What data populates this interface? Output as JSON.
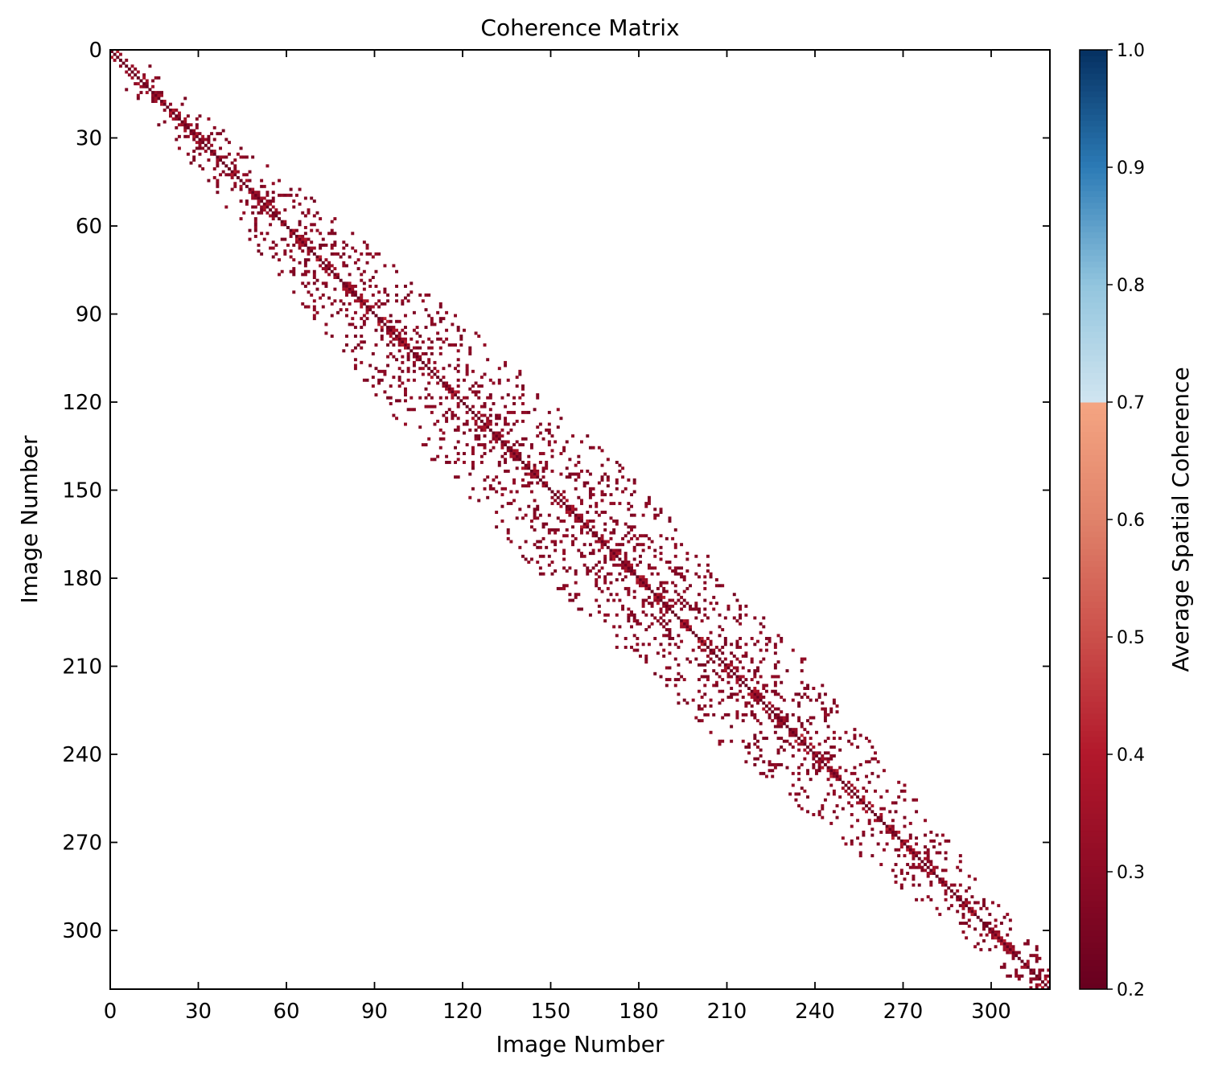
{
  "chart_data": {
    "type": "heatmap",
    "title": "Coherence Matrix",
    "xlabel": "Image Number",
    "ylabel": "Image Number",
    "matrix_size": 320,
    "xlim": [
      0,
      320
    ],
    "ylim": [
      320,
      0
    ],
    "x_ticks": [
      0,
      30,
      60,
      90,
      120,
      150,
      180,
      210,
      240,
      270,
      300
    ],
    "y_ticks": [
      0,
      30,
      60,
      90,
      120,
      150,
      180,
      210,
      240,
      270,
      300
    ],
    "x_tick_labels": [
      "0",
      "30",
      "60",
      "90",
      "120",
      "150",
      "180",
      "210",
      "240",
      "270",
      "300"
    ],
    "y_tick_labels": [
      "0",
      "30",
      "60",
      "90",
      "120",
      "150",
      "180",
      "210",
      "240",
      "270",
      "300"
    ],
    "grid": false,
    "diagonal_value": 0.2,
    "typical_offdiagonal_value": 0.28,
    "band_half_width_by_image": [
      {
        "image": 0,
        "half_width": 8
      },
      {
        "image": 30,
        "half_width": 12
      },
      {
        "image": 60,
        "half_width": 20
      },
      {
        "image": 90,
        "half_width": 28
      },
      {
        "image": 120,
        "half_width": 30
      },
      {
        "image": 150,
        "half_width": 32
      },
      {
        "image": 180,
        "half_width": 30
      },
      {
        "image": 210,
        "half_width": 28
      },
      {
        "image": 240,
        "half_width": 22
      },
      {
        "image": 270,
        "half_width": 15
      },
      {
        "image": 300,
        "half_width": 10
      },
      {
        "image": 320,
        "half_width": 8
      }
    ],
    "colorbar": {
      "label": "Average Spatial Coherence",
      "range": [
        0.2,
        1.0
      ],
      "ticks": [
        0.2,
        0.3,
        0.4,
        0.5,
        0.6,
        0.7,
        0.8,
        0.9,
        1.0
      ],
      "tick_labels": [
        "0.2",
        "0.3",
        "0.4",
        "0.5",
        "0.6",
        "0.7",
        "0.8",
        "0.9",
        "1.0"
      ],
      "colormap": "RdBu",
      "colormap_stops": [
        {
          "value": 0.2,
          "color": "#67001f"
        },
        {
          "value": 0.3,
          "color": "#8e0b25"
        },
        {
          "value": 0.4,
          "color": "#b2182b"
        },
        {
          "value": 0.5,
          "color": "#cb4f4a"
        },
        {
          "value": 0.6,
          "color": "#e0826a"
        },
        {
          "value": 0.7,
          "color": "#f4a582"
        },
        {
          "value": 0.7001,
          "color": "#d1e5f0"
        },
        {
          "value": 0.8,
          "color": "#92c5de"
        },
        {
          "value": 0.9,
          "color": "#2c7bb6"
        },
        {
          "value": 1.0,
          "color": "#053061"
        }
      ]
    }
  }
}
